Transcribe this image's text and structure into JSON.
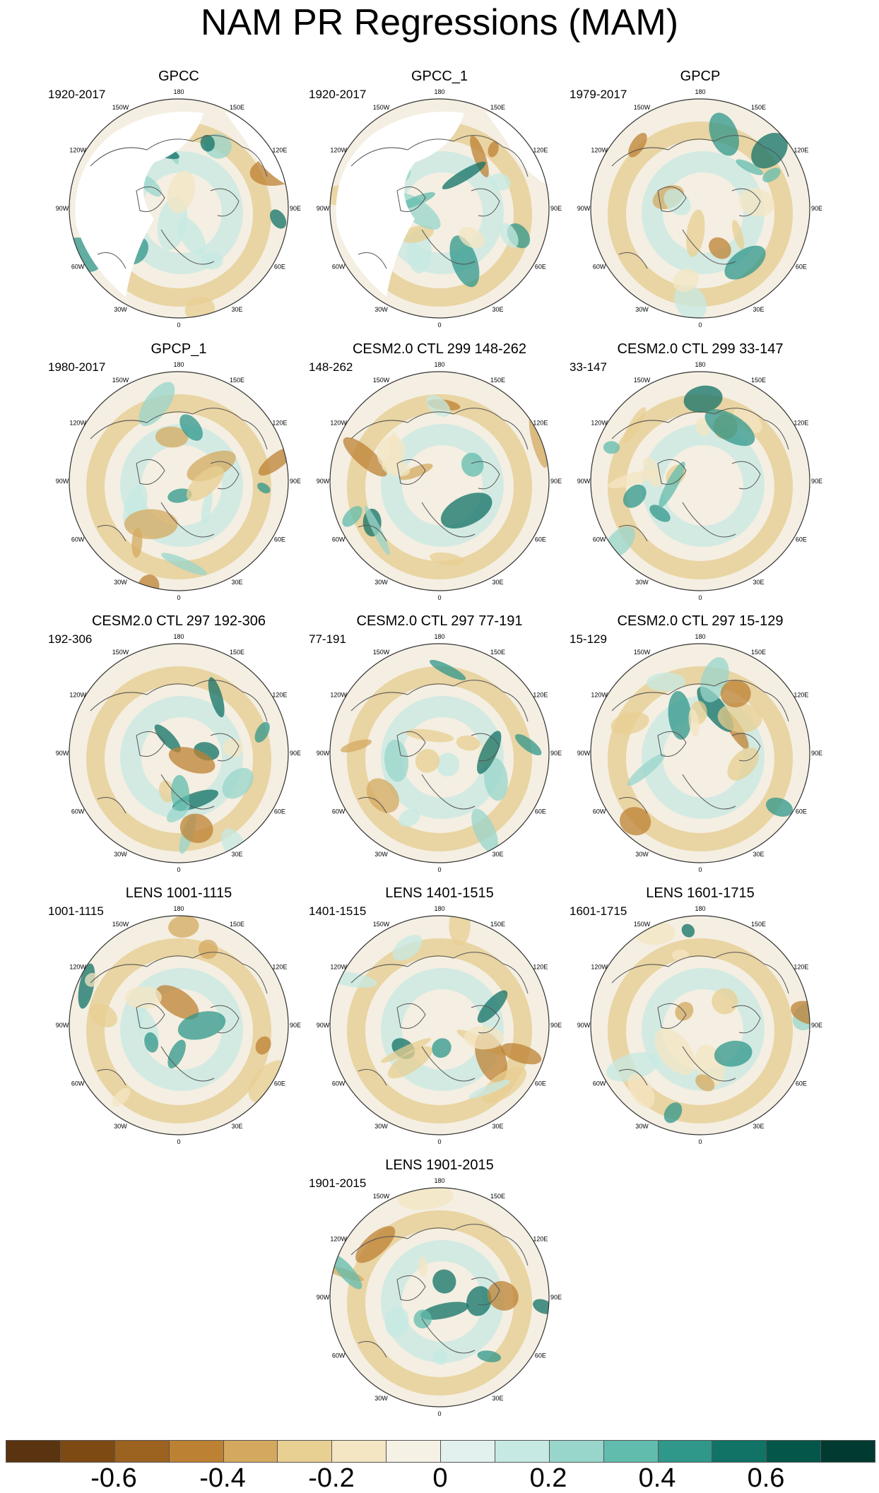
{
  "title": "NAM PR Regressions (MAM)",
  "longitude_labels": [
    "180",
    "150E",
    "120E",
    "90E",
    "60E",
    "30E",
    "0",
    "30W",
    "60W",
    "90W",
    "120W",
    "150W"
  ],
  "panels": [
    {
      "title": "GPCC",
      "period": "1920-2017"
    },
    {
      "title": "GPCC_1",
      "period": "1920-2017"
    },
    {
      "title": "GPCP",
      "period": "1979-2017"
    },
    {
      "title": "GPCP_1",
      "period": "1980-2017"
    },
    {
      "title": "CESM2.0 CTL 299 148-262",
      "period": "148-262"
    },
    {
      "title": "CESM2.0 CTL 299 33-147",
      "period": "33-147"
    },
    {
      "title": "CESM2.0 CTL 297 192-306",
      "period": "192-306"
    },
    {
      "title": "CESM2.0 CTL 297 77-191",
      "period": "77-191"
    },
    {
      "title": "CESM2.0 CTL 297 15-129",
      "period": "15-129"
    },
    {
      "title": "LENS 1001-1115",
      "period": "1001-1115"
    },
    {
      "title": "LENS 1401-1515",
      "period": "1401-1515"
    },
    {
      "title": "LENS 1601-1715",
      "period": "1601-1715"
    },
    {
      "title": "LENS 1901-2015",
      "period": "1901-2015"
    }
  ],
  "colorbar": {
    "colors": [
      "#5a3310",
      "#7d4a14",
      "#9c6220",
      "#bd8133",
      "#d4a95f",
      "#e8cf92",
      "#f4e6c3",
      "#f5f1e4",
      "#e3f1ee",
      "#c6e9e3",
      "#98d6cb",
      "#62bcae",
      "#30978b",
      "#117266",
      "#03564a",
      "#013a30"
    ],
    "tick_labels": [
      "-0.6",
      "-0.4",
      "-0.2",
      "0",
      "0.2",
      "0.4",
      "0.6"
    ]
  }
}
